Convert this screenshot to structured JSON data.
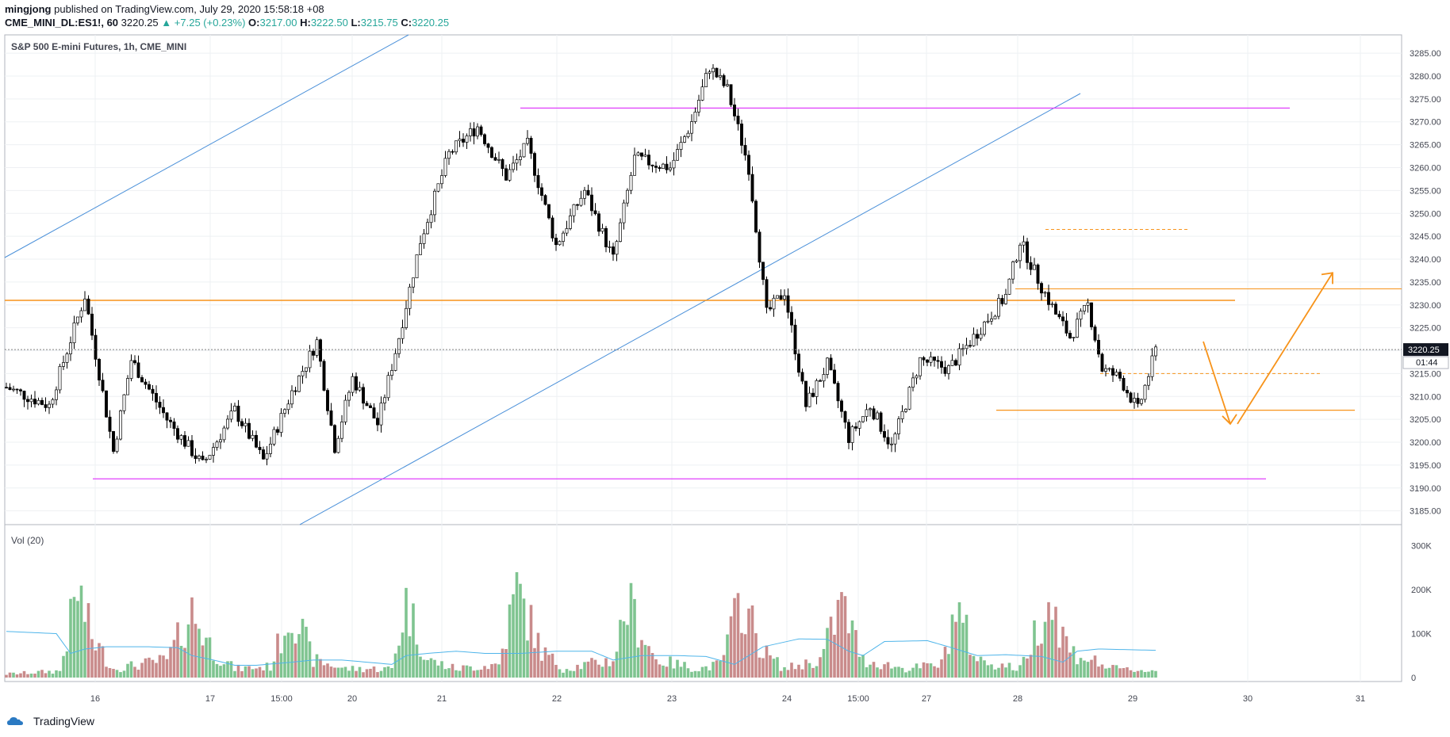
{
  "header": {
    "author": "mingjong",
    "published": "published on TradingView.com, July 29, 2020 15:58:18 +08",
    "symbol": "CME_MINI_DL:ES1!, 60",
    "last": "3220.25",
    "change": "▲ +7.25 (+0.23%)",
    "o_label": "O:",
    "o_value": "3217.00",
    "h_label": "H:",
    "h_value": "3222.50",
    "l_label": "L:",
    "l_value": "3215.75",
    "c_label": "C:",
    "c_value": "3220.25"
  },
  "pane_title": "S&P 500 E-mini Futures, 1h, CME_MINI",
  "volume_title": "Vol (20)",
  "brand": "TradingView",
  "colors": {
    "up": "#ffffff",
    "down": "#000000",
    "candle_border": "#000000",
    "vol_up": "#7fc490",
    "vol_down": "#c98b8b",
    "magenta": "#e040fb",
    "orange": "#f7931a",
    "blue": "#4a90d9",
    "vol_ma": "#4fb5ea",
    "grid": "#eef0f3"
  },
  "chart_data": {
    "type": "candlestick",
    "price_axis": {
      "ylim": [
        3182,
        3289
      ],
      "ticks": [
        "3285.00",
        "3280.00",
        "3275.00",
        "3270.00",
        "3265.00",
        "3260.00",
        "3255.00",
        "3250.00",
        "3245.00",
        "3240.00",
        "3235.00",
        "3230.00",
        "3225.00",
        "3220.00",
        "3215.00",
        "3210.00",
        "3205.00",
        "3200.00",
        "3195.00",
        "3190.00",
        "3185.00"
      ],
      "last_price_label": "3220.25",
      "countdown_label": "01:44"
    },
    "volume_axis": {
      "ylim": [
        0,
        330000
      ],
      "ticks": [
        "300K",
        "200K",
        "100K",
        "0"
      ]
    },
    "time_axis": {
      "labels": [
        "16",
        "17",
        "15:00",
        "20",
        "21",
        "22",
        "23",
        "24",
        "15:00",
        "27",
        "28",
        "29",
        "30",
        "31"
      ]
    },
    "price_anchors": [
      [
        0,
        3212
      ],
      [
        12,
        3208
      ],
      [
        22,
        3232
      ],
      [
        30,
        3198
      ],
      [
        35,
        3218
      ],
      [
        45,
        3205
      ],
      [
        55,
        3195
      ],
      [
        64,
        3207
      ],
      [
        72,
        3196
      ],
      [
        80,
        3211
      ],
      [
        87,
        3222
      ],
      [
        92,
        3199
      ],
      [
        97,
        3214
      ],
      [
        104,
        3204
      ],
      [
        110,
        3223
      ],
      [
        116,
        3244
      ],
      [
        124,
        3263
      ],
      [
        132,
        3269
      ],
      [
        140,
        3258
      ],
      [
        146,
        3265
      ],
      [
        154,
        3243
      ],
      [
        162,
        3255
      ],
      [
        170,
        3240
      ],
      [
        176,
        3262
      ],
      [
        186,
        3260
      ],
      [
        192,
        3270
      ],
      [
        197,
        3282
      ],
      [
        202,
        3277
      ],
      [
        208,
        3260
      ],
      [
        213,
        3228
      ],
      [
        218,
        3233
      ],
      [
        224,
        3208
      ],
      [
        230,
        3217
      ],
      [
        236,
        3201
      ],
      [
        242,
        3208
      ],
      [
        248,
        3199
      ],
      [
        256,
        3218
      ],
      [
        264,
        3216
      ],
      [
        272,
        3224
      ],
      [
        280,
        3232
      ],
      [
        284,
        3244
      ],
      [
        290,
        3234
      ],
      [
        294,
        3228
      ],
      [
        298,
        3223
      ],
      [
        303,
        3230
      ],
      [
        307,
        3216
      ],
      [
        312,
        3214
      ],
      [
        317,
        3207
      ],
      [
        322,
        3220
      ]
    ],
    "volume_anchors": [
      [
        0,
        8000
      ],
      [
        15,
        15000
      ],
      [
        20,
        200000
      ],
      [
        24,
        90000
      ],
      [
        30,
        20000
      ],
      [
        45,
        40000
      ],
      [
        52,
        150000
      ],
      [
        58,
        60000
      ],
      [
        64,
        20000
      ],
      [
        74,
        25000
      ],
      [
        80,
        160000
      ],
      [
        86,
        40000
      ],
      [
        95,
        20000
      ],
      [
        108,
        20000
      ],
      [
        112,
        170000
      ],
      [
        118,
        40000
      ],
      [
        126,
        20000
      ],
      [
        138,
        30000
      ],
      [
        143,
        200000
      ],
      [
        150,
        60000
      ],
      [
        156,
        20000
      ],
      [
        170,
        40000
      ],
      [
        174,
        170000
      ],
      [
        182,
        40000
      ],
      [
        194,
        20000
      ],
      [
        200,
        30000
      ],
      [
        206,
        180000
      ],
      [
        212,
        60000
      ],
      [
        218,
        20000
      ],
      [
        228,
        40000
      ],
      [
        234,
        170000
      ],
      [
        240,
        40000
      ],
      [
        252,
        20000
      ],
      [
        262,
        30000
      ],
      [
        266,
        160000
      ],
      [
        272,
        40000
      ],
      [
        284,
        20000
      ],
      [
        292,
        180000
      ],
      [
        298,
        60000
      ],
      [
        310,
        20000
      ],
      [
        322,
        15000
      ]
    ],
    "volume_ma": [
      [
        0,
        105000
      ],
      [
        14,
        100000
      ],
      [
        18,
        55000
      ],
      [
        22,
        65000
      ],
      [
        28,
        70000
      ],
      [
        40,
        70000
      ],
      [
        48,
        68000
      ],
      [
        52,
        50000
      ],
      [
        58,
        40000
      ],
      [
        64,
        28000
      ],
      [
        70,
        28000
      ],
      [
        80,
        35000
      ],
      [
        86,
        40000
      ],
      [
        94,
        40000
      ],
      [
        108,
        30000
      ],
      [
        112,
        50000
      ],
      [
        118,
        55000
      ],
      [
        126,
        60000
      ],
      [
        134,
        55000
      ],
      [
        144,
        55000
      ],
      [
        154,
        60000
      ],
      [
        164,
        60000
      ],
      [
        170,
        40000
      ],
      [
        178,
        50000
      ],
      [
        188,
        50000
      ],
      [
        196,
        48000
      ],
      [
        204,
        30000
      ],
      [
        212,
        70000
      ],
      [
        222,
        88000
      ],
      [
        230,
        87000
      ],
      [
        236,
        60000
      ],
      [
        240,
        50000
      ],
      [
        246,
        82000
      ],
      [
        258,
        84000
      ],
      [
        264,
        70000
      ],
      [
        272,
        50000
      ],
      [
        280,
        52000
      ],
      [
        290,
        48000
      ],
      [
        296,
        35000
      ],
      [
        300,
        60000
      ],
      [
        306,
        65000
      ],
      [
        322,
        62000
      ]
    ],
    "drawings": {
      "magenta_levels": [
        3273,
        3192
      ],
      "orange_levels": [
        3231,
        3233.5,
        3207
      ],
      "orange_dashed_levels": [
        3246.5,
        3215
      ],
      "forecast_path": [
        3222,
        3204,
        3237
      ]
    }
  }
}
